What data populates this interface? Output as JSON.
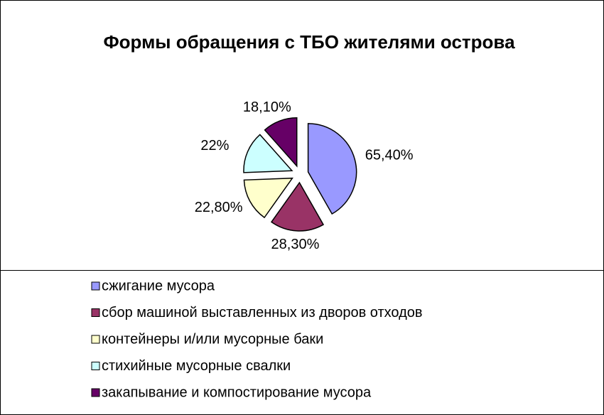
{
  "chart_data": {
    "type": "pie",
    "title": "Формы обращения с ТБО жителями острова",
    "categories": [
      "сжигание мусора",
      "сбор машиной выставленных из дворов отходов",
      "контейнеры и/или мусорные баки",
      "стихийные мусорные свалки",
      "закапывание  и компостирование мусора"
    ],
    "values": [
      65.4,
      28.3,
      22.8,
      22,
      18.1
    ],
    "value_labels": [
      "65,40%",
      "28,30%",
      "22,80%",
      "22%",
      "18,10%"
    ],
    "colors": [
      "#9999ff",
      "#993366",
      "#ffffcc",
      "#ccffff",
      "#660066"
    ]
  }
}
